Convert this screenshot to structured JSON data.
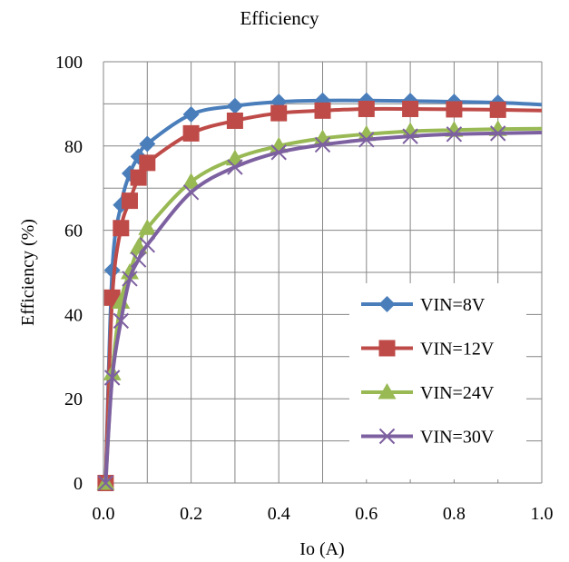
{
  "chart_data": {
    "type": "line",
    "title": "Efficiency",
    "xlabel": "Io (A)",
    "ylabel": "Efficiency (%)",
    "xlim": [
      0.0,
      1.0
    ],
    "ylim": [
      0,
      100
    ],
    "x_ticks": [
      "0.0",
      "0.2",
      "0.4",
      "0.6",
      "0.8",
      "1.0"
    ],
    "y_ticks": [
      "0",
      "20",
      "40",
      "60",
      "80",
      "100"
    ],
    "grid": true,
    "legend_position": "bottom-right",
    "series": [
      {
        "name": "VIN=8V",
        "color": "#4a7ebb",
        "marker": "diamond",
        "x": [
          0.005,
          0.02,
          0.04,
          0.06,
          0.08,
          0.1,
          0.2,
          0.3,
          0.4,
          0.5,
          0.6,
          0.7,
          0.8,
          0.9
        ],
        "y": [
          0,
          50.5,
          66,
          73.5,
          77.5,
          80.5,
          87.5,
          89.5,
          90.5,
          90.8,
          90.8,
          90.7,
          90.5,
          90.3
        ],
        "curve_end": 89.8
      },
      {
        "name": "VIN=12V",
        "color": "#be4b48",
        "marker": "square",
        "x": [
          0.005,
          0.02,
          0.04,
          0.06,
          0.08,
          0.1,
          0.2,
          0.3,
          0.4,
          0.5,
          0.6,
          0.7,
          0.8,
          0.9
        ],
        "y": [
          0,
          44,
          60.5,
          67,
          72.5,
          76,
          83,
          86,
          87.8,
          88.4,
          88.8,
          88.8,
          88.7,
          88.6
        ],
        "curve_end": 88.4
      },
      {
        "name": "VIN=24V",
        "color": "#98b954",
        "marker": "triangle",
        "x": [
          0.005,
          0.02,
          0.04,
          0.06,
          0.08,
          0.1,
          0.2,
          0.3,
          0.4,
          0.5,
          0.6,
          0.7,
          0.8,
          0.9
        ],
        "y": [
          0,
          26,
          43,
          50,
          56,
          60.5,
          71.5,
          77,
          80,
          81.8,
          82.8,
          83.5,
          83.8,
          84.0
        ],
        "curve_end": 84.1
      },
      {
        "name": "VIN=30V",
        "color": "#7d60a0",
        "marker": "x",
        "x": [
          0.005,
          0.02,
          0.04,
          0.06,
          0.08,
          0.1,
          0.2,
          0.3,
          0.4,
          0.5,
          0.6,
          0.7,
          0.8,
          0.9
        ],
        "y": [
          0,
          25,
          38.5,
          48.5,
          53,
          56.5,
          69,
          75,
          78.5,
          80.3,
          81.5,
          82.3,
          82.8,
          83.0
        ],
        "curve_end": 83.2
      }
    ]
  }
}
